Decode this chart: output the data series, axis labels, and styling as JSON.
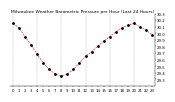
{
  "title": "Milwaukee Weather Barometric Pressure per Hour (Last 24 Hours)",
  "hours": [
    0,
    1,
    2,
    3,
    4,
    5,
    6,
    7,
    8,
    9,
    10,
    11,
    12,
    13,
    14,
    15,
    16,
    17,
    18,
    19,
    20,
    21,
    22,
    23
  ],
  "pressure": [
    30.15,
    30.08,
    29.95,
    29.82,
    29.68,
    29.55,
    29.45,
    29.38,
    29.35,
    29.38,
    29.45,
    29.55,
    29.65,
    29.72,
    29.8,
    29.88,
    29.95,
    30.02,
    30.08,
    30.12,
    30.15,
    30.1,
    30.05,
    29.98
  ],
  "line_color": "#ff0000",
  "marker_color": "#000000",
  "bg_color": "#ffffff",
  "grid_color": "#888888",
  "ylim_min": 29.2,
  "ylim_max": 30.3,
  "ytick_min": 29.3,
  "ytick_max": 30.3,
  "ytick_step": 0.1,
  "xlabel_fontsize": 2.8,
  "ylabel_fontsize": 2.8,
  "title_fontsize": 3.2,
  "grid_every": 4
}
